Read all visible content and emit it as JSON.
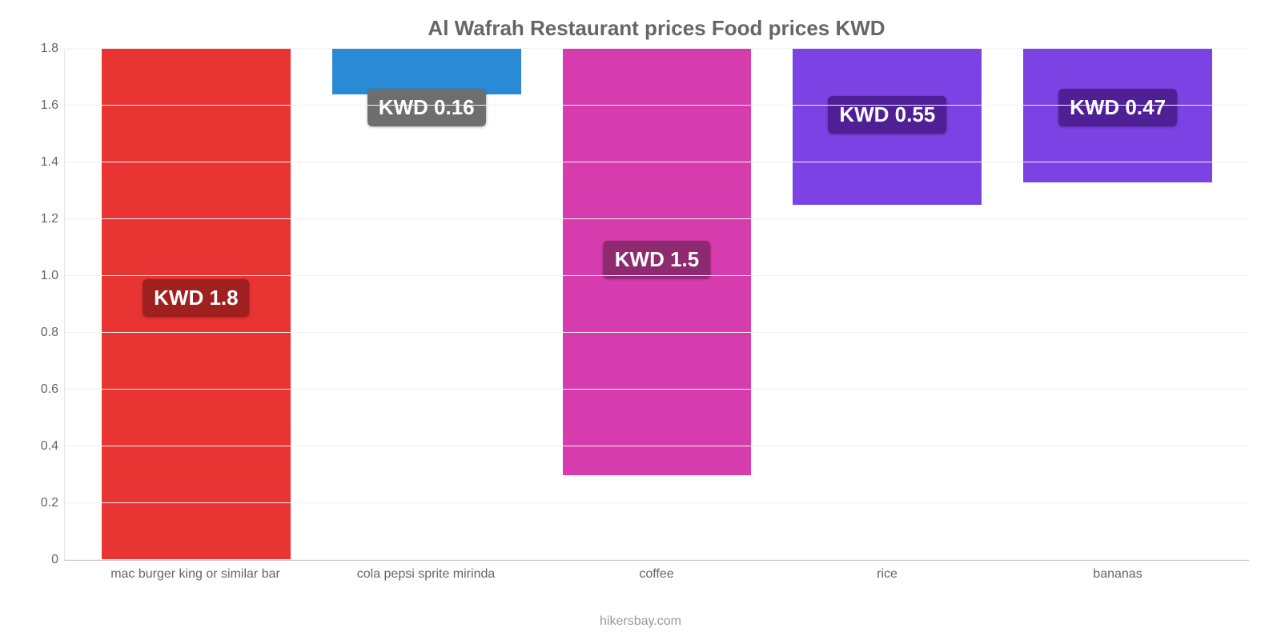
{
  "chart": {
    "type": "bar",
    "title": "Al Wafrah Restaurant prices Food prices KWD",
    "title_color": "#666666",
    "title_fontsize": 26,
    "background_color": "#ffffff",
    "grid_color": "#f2f2f2",
    "axis_color": "#cccccc",
    "label_color": "#666666",
    "label_fontsize": 16,
    "value_label_fontsize": 26,
    "ylim_max": 1.8,
    "yticks": [
      0,
      0.2,
      0.4,
      0.6,
      0.8,
      "1.0",
      1.2,
      1.4,
      1.6,
      1.8
    ],
    "bar_width_pct": 82,
    "categories": [
      "mac burger king or similar bar",
      "cola pepsi sprite mirinda",
      "coffee",
      "rice",
      "bananas"
    ],
    "values": [
      1.8,
      0.16,
      1.5,
      0.55,
      0.47
    ],
    "value_labels": [
      "KWD 1.8",
      "KWD 0.16",
      "KWD 1.5",
      "KWD 0.55",
      "KWD 0.47"
    ],
    "bar_colors": [
      "#e93434",
      "#2a8ad6",
      "#d63cae",
      "#7c42e3",
      "#7c42e3"
    ],
    "badge_colors": [
      "#a01f1f",
      "#6e6e6e",
      "#8e2a6f",
      "#4f1f96",
      "#4f1f96"
    ],
    "badge_y_offset_pct": [
      45,
      88,
      45,
      30,
      30
    ],
    "attribution": "hikersbay.com",
    "attribution_color": "#999999"
  }
}
